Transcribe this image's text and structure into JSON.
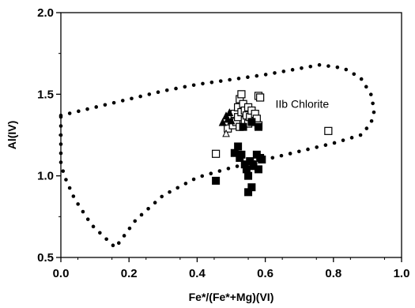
{
  "chart_data": {
    "type": "scatter",
    "xlabel": "Fe*/(Fe*+Mg)(VI)",
    "ylabel": "Al(IV)",
    "xlim": [
      0.0,
      1.0
    ],
    "ylim": [
      0.5,
      2.0
    ],
    "x_ticks": [
      "0.0",
      "0.2",
      "0.4",
      "0.6",
      "0.8",
      "1.0"
    ],
    "y_ticks": [
      "0.5",
      "1.0",
      "1.5",
      "2.0"
    ],
    "grid": false,
    "annotation": {
      "text": "IIb Chlorite",
      "x": 0.63,
      "y": 1.44
    },
    "field_boundary": {
      "style": "dotted",
      "points": [
        [
          0.0,
          1.37
        ],
        [
          0.1,
          1.42
        ],
        [
          0.2,
          1.47
        ],
        [
          0.3,
          1.52
        ],
        [
          0.4,
          1.56
        ],
        [
          0.5,
          1.59
        ],
        [
          0.6,
          1.62
        ],
        [
          0.68,
          1.65
        ],
        [
          0.76,
          1.68
        ],
        [
          0.83,
          1.66
        ],
        [
          0.88,
          1.6
        ],
        [
          0.91,
          1.5
        ],
        [
          0.92,
          1.4
        ],
        [
          0.91,
          1.32
        ],
        [
          0.88,
          1.25
        ],
        [
          0.8,
          1.2
        ],
        [
          0.7,
          1.15
        ],
        [
          0.6,
          1.1
        ],
        [
          0.5,
          1.05
        ],
        [
          0.4,
          0.99
        ],
        [
          0.3,
          0.88
        ],
        [
          0.22,
          0.73
        ],
        [
          0.16,
          0.56
        ],
        [
          0.09,
          0.7
        ],
        [
          0.04,
          0.86
        ],
        [
          0.01,
          1.0
        ],
        [
          0.0,
          1.08
        ]
      ]
    },
    "series": [
      {
        "marker": "open-square",
        "points": [
          [
            0.455,
            1.135
          ],
          [
            0.49,
            1.29
          ],
          [
            0.5,
            1.35
          ],
          [
            0.505,
            1.31
          ],
          [
            0.51,
            1.38
          ],
          [
            0.515,
            1.33
          ],
          [
            0.52,
            1.42
          ],
          [
            0.52,
            1.36
          ],
          [
            0.525,
            1.47
          ],
          [
            0.525,
            1.3
          ],
          [
            0.53,
            1.5
          ],
          [
            0.53,
            1.39
          ],
          [
            0.535,
            1.44
          ],
          [
            0.54,
            1.34
          ],
          [
            0.54,
            1.4
          ],
          [
            0.545,
            1.37
          ],
          [
            0.55,
            1.32
          ],
          [
            0.55,
            1.42
          ],
          [
            0.555,
            1.36
          ],
          [
            0.56,
            1.4
          ],
          [
            0.565,
            1.33
          ],
          [
            0.57,
            1.38
          ],
          [
            0.575,
            1.35
          ],
          [
            0.58,
            1.49
          ],
          [
            0.58,
            1.31
          ],
          [
            0.585,
            1.48
          ],
          [
            0.785,
            1.275
          ]
        ]
      },
      {
        "marker": "filled-square",
        "points": [
          [
            0.455,
            0.97
          ],
          [
            0.51,
            1.14
          ],
          [
            0.52,
            1.18
          ],
          [
            0.525,
            1.11
          ],
          [
            0.53,
            1.13
          ],
          [
            0.535,
            1.3
          ],
          [
            0.54,
            1.07
          ],
          [
            0.545,
            1.04
          ],
          [
            0.55,
            0.9
          ],
          [
            0.55,
            1.0
          ],
          [
            0.555,
            1.09
          ],
          [
            0.56,
            0.93
          ],
          [
            0.56,
            1.33
          ],
          [
            0.565,
            1.06
          ],
          [
            0.575,
            1.13
          ],
          [
            0.58,
            1.3
          ],
          [
            0.58,
            1.04
          ],
          [
            0.585,
            1.11
          ],
          [
            0.59,
            1.1
          ]
        ]
      },
      {
        "marker": "filled-triangle",
        "points": [
          [
            0.475,
            1.33
          ],
          [
            0.485,
            1.37
          ],
          [
            0.49,
            1.35
          ],
          [
            0.495,
            1.39
          ],
          [
            0.5,
            1.34
          ]
        ]
      },
      {
        "marker": "open-triangle",
        "points": [
          [
            0.485,
            1.26
          ]
        ]
      }
    ]
  }
}
